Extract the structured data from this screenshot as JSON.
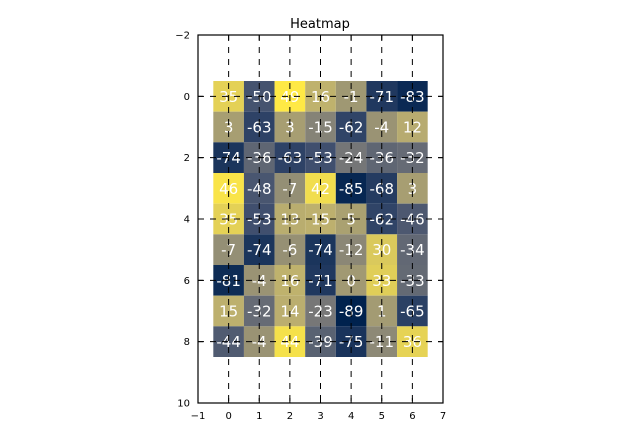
{
  "chart_data": {
    "type": "heatmap",
    "title": "Heatmap",
    "xlabel": "",
    "ylabel": "",
    "xlim": [
      -1,
      7
    ],
    "ylim": [
      10,
      -2
    ],
    "xticks": [
      -1,
      0,
      1,
      2,
      3,
      4,
      5,
      6,
      7
    ],
    "yticks": [
      -2,
      0,
      2,
      4,
      6,
      8,
      10
    ],
    "grid": true,
    "colormap": "cividis",
    "value_range": [
      -89,
      49
    ],
    "columns": [
      0,
      1,
      2,
      3,
      4,
      5,
      6
    ],
    "rows": [
      0,
      1,
      2,
      3,
      4,
      5,
      6,
      7,
      8
    ],
    "values": [
      [
        35,
        -50,
        49,
        16,
        -1,
        -71,
        -83
      ],
      [
        3,
        -63,
        3,
        -15,
        -62,
        -4,
        12
      ],
      [
        -74,
        -36,
        -63,
        -53,
        -24,
        -36,
        -32
      ],
      [
        46,
        -48,
        -7,
        42,
        -85,
        -68,
        3
      ],
      [
        35,
        -53,
        13,
        15,
        5,
        -62,
        -46
      ],
      [
        -7,
        -74,
        -6,
        -74,
        -12,
        30,
        -34
      ],
      [
        -81,
        -4,
        16,
        -71,
        0,
        33,
        -33
      ],
      [
        15,
        -32,
        14,
        -23,
        -89,
        1,
        -65
      ],
      [
        -44,
        -4,
        44,
        -39,
        -75,
        -11,
        36
      ]
    ]
  }
}
